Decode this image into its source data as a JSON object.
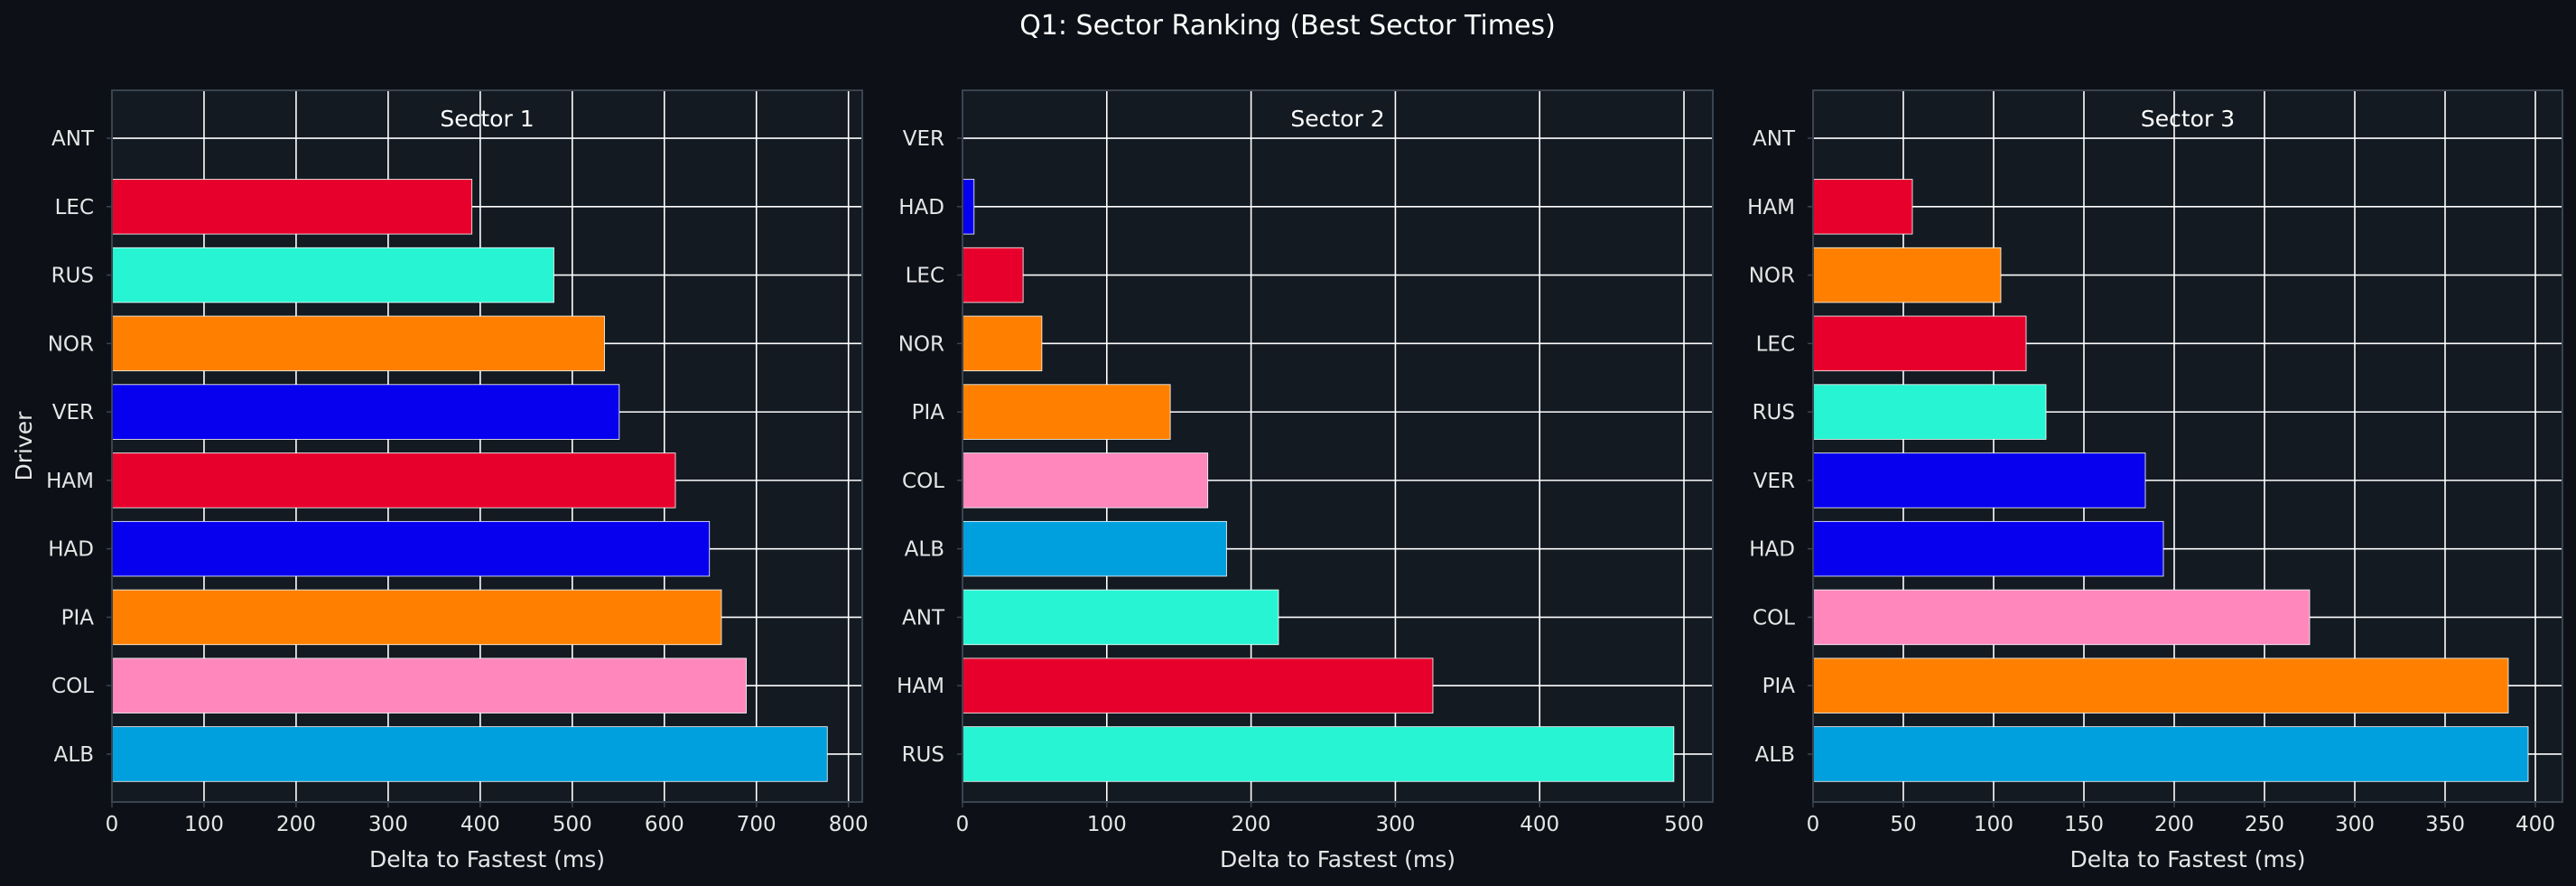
{
  "title": "Q1: Sector Ranking (Best Sector Times)",
  "colors": {
    "background": "#0d1117",
    "panel": "#131a22",
    "grid": "#ffffff",
    "frame": "#3a4350",
    "bar_edge": "#ffffff"
  },
  "chart_data": [
    {
      "type": "bar",
      "orientation": "horizontal",
      "title": "Sector 1",
      "xlabel": "Delta to Fastest (ms)",
      "ylabel": "Driver",
      "xlim": [
        0,
        815
      ],
      "xticks": [
        0,
        100,
        200,
        300,
        400,
        500,
        600,
        700,
        800
      ],
      "grid": true,
      "categories": [
        "ANT",
        "LEC",
        "RUS",
        "NOR",
        "VER",
        "HAM",
        "HAD",
        "PIA",
        "COL",
        "ALB"
      ],
      "values": [
        0,
        391,
        480,
        535,
        551,
        612,
        649,
        662,
        689,
        777
      ],
      "colors": [
        "#27f4d2",
        "#e8002d",
        "#27f4d2",
        "#ff8000",
        "#0600ef",
        "#e8002d",
        "#0600ef",
        "#ff8000",
        "#ff87bc",
        "#00a0de"
      ]
    },
    {
      "type": "bar",
      "orientation": "horizontal",
      "title": "Sector 2",
      "xlabel": "Delta to Fastest (ms)",
      "ylabel": "",
      "xlim": [
        0,
        520
      ],
      "xticks": [
        0,
        100,
        200,
        300,
        400,
        500
      ],
      "grid": true,
      "categories": [
        "VER",
        "HAD",
        "LEC",
        "NOR",
        "PIA",
        "COL",
        "ALB",
        "ANT",
        "HAM",
        "RUS"
      ],
      "values": [
        0,
        8,
        42,
        55,
        144,
        170,
        183,
        219,
        326,
        493
      ],
      "colors": [
        "#0600ef",
        "#0600ef",
        "#e8002d",
        "#ff8000",
        "#ff8000",
        "#ff87bc",
        "#00a0de",
        "#27f4d2",
        "#e8002d",
        "#27f4d2"
      ]
    },
    {
      "type": "bar",
      "orientation": "horizontal",
      "title": "Sector 3",
      "xlabel": "Delta to Fastest (ms)",
      "ylabel": "",
      "xlim": [
        0,
        415
      ],
      "xticks": [
        0,
        50,
        100,
        150,
        200,
        250,
        300,
        350,
        400
      ],
      "grid": true,
      "categories": [
        "ANT",
        "HAM",
        "NOR",
        "LEC",
        "RUS",
        "VER",
        "HAD",
        "COL",
        "PIA",
        "ALB"
      ],
      "values": [
        0,
        55,
        104,
        118,
        129,
        184,
        194,
        275,
        385,
        396
      ],
      "colors": [
        "#27f4d2",
        "#e8002d",
        "#ff8000",
        "#e8002d",
        "#27f4d2",
        "#0600ef",
        "#0600ef",
        "#ff87bc",
        "#ff8000",
        "#00a0de"
      ]
    }
  ]
}
